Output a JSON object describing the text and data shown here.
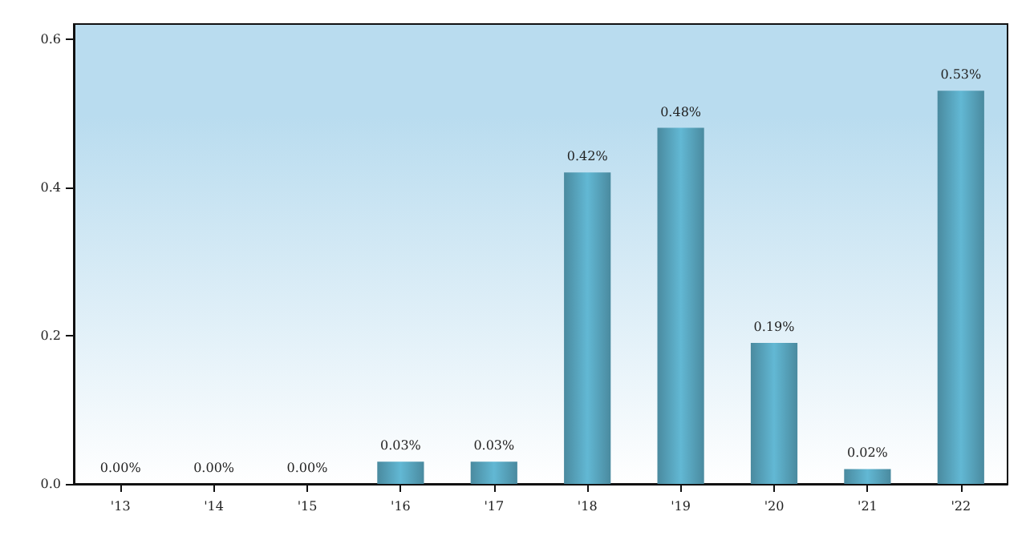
{
  "chart_data": {
    "type": "bar",
    "categories": [
      "'13",
      "'14",
      "'15",
      "'16",
      "'17",
      "'18",
      "'19",
      "'20",
      "'21",
      "'22"
    ],
    "values": [
      0,
      0,
      0,
      0.03,
      0.03,
      0.42,
      0.48,
      0.19,
      0.02,
      0.53
    ],
    "value_labels": [
      "0.00%",
      "0.00%",
      "0.00%",
      "0.03%",
      "0.03%",
      "0.42%",
      "0.48%",
      "0.19%",
      "0.02%",
      "0.53%"
    ],
    "color": "#62b8d4",
    "ylim": [
      0,
      0.62
    ],
    "yticks": [
      {
        "value": 0,
        "label": "0.0"
      },
      {
        "value": 0.2,
        "label": "0.2"
      },
      {
        "value": 0.4,
        "label": "0.4"
      },
      {
        "value": 0.6,
        "label": "0.6"
      }
    ],
    "grid": false
  }
}
